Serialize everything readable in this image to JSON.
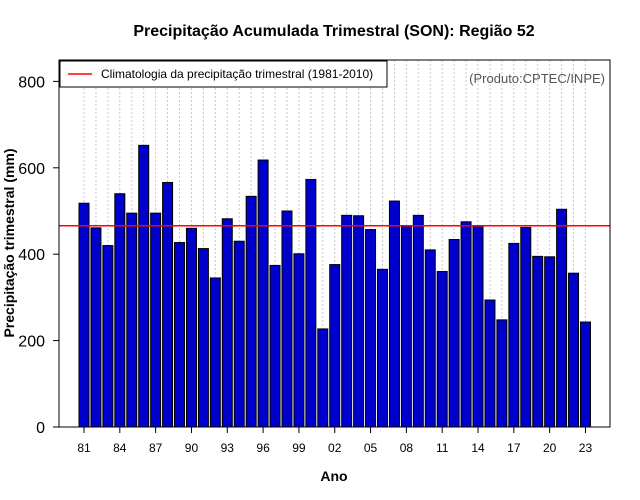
{
  "chart_data": {
    "type": "bar",
    "title": "Precipitação Acumulada Trimestral (SON): Região 52",
    "xlabel": "Ano",
    "ylabel": "Precipitação trimestral (mm)",
    "ylim": [
      0,
      850
    ],
    "y_ticks": [
      0,
      200,
      400,
      600,
      800
    ],
    "grid": "vertical-dotted",
    "legend_position": "top-left",
    "credit": "(Produto:CPTEC/INPE)",
    "bar_color": "#0000cd",
    "climatology": {
      "label": "Climatologia da precipitação trimestral (1981-2010)",
      "value": 466,
      "color": "#ff0000"
    },
    "categories": [
      1981,
      1982,
      1983,
      1984,
      1985,
      1986,
      1987,
      1988,
      1989,
      1990,
      1991,
      1992,
      1993,
      1994,
      1995,
      1996,
      1997,
      1998,
      1999,
      2000,
      2001,
      2002,
      2003,
      2004,
      2005,
      2006,
      2007,
      2008,
      2009,
      2010,
      2011,
      2012,
      2013,
      2014,
      2015,
      2016,
      2017,
      2018,
      2019,
      2020,
      2021,
      2022,
      2023
    ],
    "x_tick_labels": [
      {
        "year": 1981,
        "label": "81"
      },
      {
        "year": 1984,
        "label": "84"
      },
      {
        "year": 1987,
        "label": "87"
      },
      {
        "year": 1990,
        "label": "90"
      },
      {
        "year": 1993,
        "label": "93"
      },
      {
        "year": 1996,
        "label": "96"
      },
      {
        "year": 1999,
        "label": "99"
      },
      {
        "year": 2002,
        "label": "02"
      },
      {
        "year": 2005,
        "label": "05"
      },
      {
        "year": 2008,
        "label": "08"
      },
      {
        "year": 2011,
        "label": "11"
      },
      {
        "year": 2014,
        "label": "14"
      },
      {
        "year": 2017,
        "label": "17"
      },
      {
        "year": 2020,
        "label": "20"
      },
      {
        "year": 2023,
        "label": "23"
      }
    ],
    "values": [
      518,
      461,
      420,
      540,
      495,
      652,
      495,
      566,
      427,
      460,
      413,
      345,
      482,
      430,
      534,
      618,
      374,
      500,
      401,
      573,
      227,
      376,
      490,
      489,
      457,
      365,
      523,
      465,
      490,
      410,
      360,
      434,
      475,
      466,
      294,
      248,
      425,
      462,
      395,
      394,
      504,
      356,
      243
    ]
  }
}
